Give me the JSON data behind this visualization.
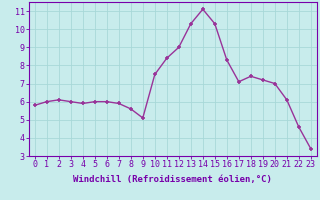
{
  "x": [
    0,
    1,
    2,
    3,
    4,
    5,
    6,
    7,
    8,
    9,
    10,
    11,
    12,
    13,
    14,
    15,
    16,
    17,
    18,
    19,
    20,
    21,
    22,
    23
  ],
  "y": [
    5.8,
    6.0,
    6.1,
    6.0,
    5.9,
    6.0,
    6.0,
    5.9,
    5.6,
    5.1,
    7.5,
    8.4,
    9.0,
    10.3,
    11.1,
    10.3,
    8.3,
    7.1,
    7.4,
    7.2,
    7.0,
    6.1,
    4.6,
    3.4
  ],
  "line_color": "#993399",
  "marker": "+",
  "marker_size": 3.5,
  "line_width": 1.0,
  "xlabel": "Windchill (Refroidissement éolien,°C)",
  "xlabel_fontsize": 6.5,
  "xlim": [
    -0.5,
    23.5
  ],
  "ylim": [
    3,
    11.5
  ],
  "yticks": [
    3,
    4,
    5,
    6,
    7,
    8,
    9,
    10,
    11
  ],
  "xticks": [
    0,
    1,
    2,
    3,
    4,
    5,
    6,
    7,
    8,
    9,
    10,
    11,
    12,
    13,
    14,
    15,
    16,
    17,
    18,
    19,
    20,
    21,
    22,
    23
  ],
  "xtick_labels": [
    "0",
    "1",
    "2",
    "3",
    "4",
    "5",
    "6",
    "7",
    "8",
    "9",
    "10",
    "11",
    "12",
    "13",
    "14",
    "15",
    "16",
    "17",
    "18",
    "19",
    "20",
    "21",
    "22",
    "23"
  ],
  "grid_color": "#a8d8d8",
  "background_color": "#c8ecec",
  "tick_fontsize": 6.0,
  "xlabel_color": "#7700aa",
  "tick_color": "#7700aa",
  "spine_color": "#7700aa",
  "marker_color": "#993399"
}
